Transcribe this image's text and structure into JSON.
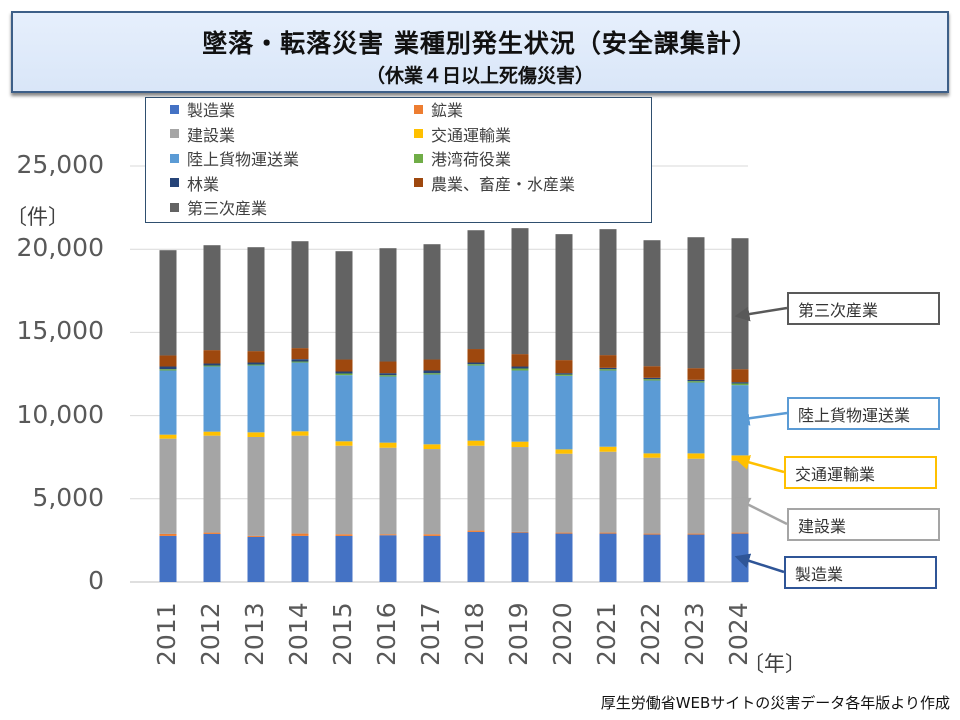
{
  "title": "墜落・転落災害 業種別発生状況（安全課集計）",
  "subtitle": "（休業４日以上死傷災害）",
  "footer": "厚生労働省WEBサイトの災害データ各年版より作成",
  "chart_data": {
    "type": "bar",
    "stacked": true,
    "title": "墜落・転落災害 業種別発生状況（安全課集計）",
    "ylabel": "〔件〕",
    "xlabel": "〔年〕",
    "ylim": [
      0,
      25000
    ],
    "yticks": [
      "0",
      "5,000",
      "10,000",
      "15,000",
      "20,000",
      "25,000"
    ],
    "ytick_values": [
      0,
      5000,
      10000,
      15000,
      20000,
      25000
    ],
    "grid": true,
    "legend_position": "top",
    "categories": [
      "2011",
      "2012",
      "2013",
      "2014",
      "2015",
      "2016",
      "2017",
      "2018",
      "2019",
      "2020",
      "2021",
      "2022",
      "2023",
      "2024"
    ],
    "series": [
      {
        "name": "製造業",
        "color": "#4472c4",
        "values": [
          2770,
          2890,
          2710,
          2770,
          2770,
          2810,
          2770,
          3010,
          2970,
          2910,
          2910,
          2850,
          2850,
          2910
        ]
      },
      {
        "name": "鉱業",
        "color": "#ed7d31",
        "values": [
          120,
          80,
          60,
          140,
          100,
          60,
          100,
          80,
          40,
          60,
          60,
          60,
          60,
          60
        ]
      },
      {
        "name": "建設業",
        "color": "#a5a5a5",
        "values": [
          5725,
          5825,
          5945,
          5885,
          5320,
          5200,
          5120,
          5100,
          5100,
          4740,
          4860,
          4560,
          4500,
          4320
        ]
      },
      {
        "name": "交通運輸業",
        "color": "#ffc000",
        "values": [
          240,
          240,
          280,
          260,
          265,
          305,
          285,
          305,
          325,
          260,
          300,
          260,
          320,
          320
        ]
      },
      {
        "name": "陸上貨物運送業",
        "color": "#5b9bd5",
        "values": [
          3855,
          3915,
          4015,
          4135,
          3975,
          3975,
          4195,
          4515,
          4275,
          4420,
          4580,
          4380,
          4260,
          4220
        ]
      },
      {
        "name": "港湾荷役業",
        "color": "#70ad47",
        "values": [
          80,
          60,
          60,
          60,
          100,
          80,
          80,
          80,
          120,
          80,
          80,
          80,
          80,
          100
        ]
      },
      {
        "name": "林業",
        "color": "#264478",
        "values": [
          160,
          120,
          120,
          140,
          120,
          120,
          160,
          100,
          120,
          80,
          80,
          80,
          80,
          80
        ]
      },
      {
        "name": "農業、畜産・水産業",
        "color": "#9e480e",
        "values": [
          665,
          805,
          685,
          665,
          720,
          700,
          660,
          810,
          745,
          785,
          765,
          700,
          700,
          780
        ]
      },
      {
        "name": "第三次産業",
        "color": "#636363",
        "values": [
          6325,
          6305,
          6245,
          6425,
          6510,
          6810,
          6930,
          7140,
          7570,
          7570,
          7570,
          7570,
          7870,
          7870
        ]
      }
    ],
    "callouts": [
      {
        "label": "第三次産業",
        "color": "#595959"
      },
      {
        "label": "陸上貨物運送業",
        "color": "#5b9bd5"
      },
      {
        "label": "交通運輸業",
        "color": "#ffc000"
      },
      {
        "label": "建設業",
        "color": "#a5a5a5"
      },
      {
        "label": "製造業",
        "color": "#2f5597"
      }
    ]
  }
}
